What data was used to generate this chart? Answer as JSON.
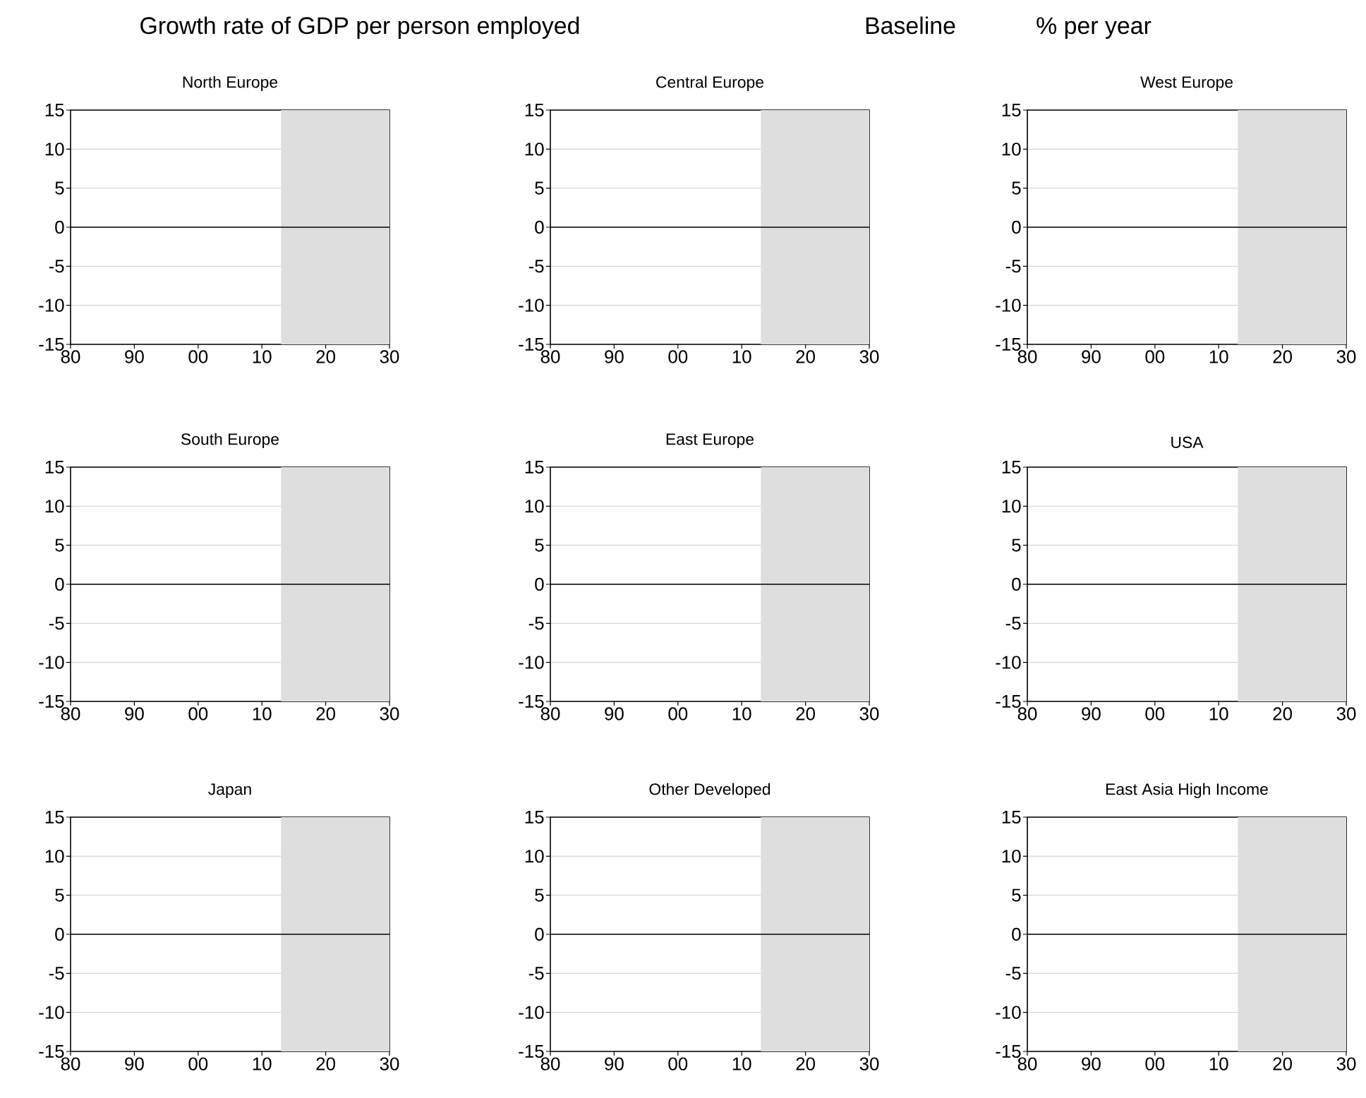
{
  "chart_data": [
    {
      "type": "line",
      "title": "North Europe",
      "annotations": [
        "Growth rate of GDP per person employed",
        "Baseline",
        "% per year"
      ],
      "xlim": [
        1980,
        2030
      ],
      "ylim": [
        -15,
        15
      ],
      "xticks": [
        {
          "value": 1980,
          "label": "80"
        },
        {
          "value": 1990,
          "label": "90"
        },
        {
          "value": 2000,
          "label": "00"
        },
        {
          "value": 2010,
          "label": "10"
        },
        {
          "value": 2020,
          "label": "20"
        },
        {
          "value": 2030,
          "label": "30"
        }
      ],
      "yticks": [
        -15,
        -10,
        -5,
        0,
        5,
        10,
        15
      ],
      "grid": "y",
      "ref_lines": [
        {
          "axis": "y",
          "value": 0,
          "color": "#000000"
        }
      ],
      "bands": [
        {
          "axis": "x",
          "from": 2013,
          "to": 2030,
          "color": "#dedede"
        }
      ]
    },
    {
      "type": "line",
      "title": "Central Europe",
      "xlim": [
        1980,
        2030
      ],
      "ylim": [
        -15,
        15
      ],
      "xticks": [
        {
          "value": 1980,
          "label": "80"
        },
        {
          "value": 1990,
          "label": "90"
        },
        {
          "value": 2000,
          "label": "00"
        },
        {
          "value": 2010,
          "label": "10"
        },
        {
          "value": 2020,
          "label": "20"
        },
        {
          "value": 2030,
          "label": "30"
        }
      ],
      "yticks": [
        -15,
        -10,
        -5,
        0,
        5,
        10,
        15
      ],
      "grid": "y",
      "ref_lines": [
        {
          "axis": "y",
          "value": 0,
          "color": "#000000"
        }
      ],
      "bands": [
        {
          "axis": "x",
          "from": 2013,
          "to": 2030,
          "color": "#dedede"
        }
      ]
    },
    {
      "type": "line",
      "title": "West Europe",
      "xlim": [
        1980,
        2030
      ],
      "ylim": [
        -15,
        15
      ],
      "xticks": [
        {
          "value": 1980,
          "label": "80"
        },
        {
          "value": 1990,
          "label": "90"
        },
        {
          "value": 2000,
          "label": "00"
        },
        {
          "value": 2010,
          "label": "10"
        },
        {
          "value": 2020,
          "label": "20"
        },
        {
          "value": 2030,
          "label": "30"
        }
      ],
      "yticks": [
        -15,
        -10,
        -5,
        0,
        5,
        10,
        15
      ],
      "grid": "y",
      "ref_lines": [
        {
          "axis": "y",
          "value": 0,
          "color": "#000000"
        }
      ],
      "bands": [
        {
          "axis": "x",
          "from": 2013,
          "to": 2030,
          "color": "#dedede"
        }
      ]
    },
    {
      "type": "line",
      "title": "South Europe",
      "xlim": [
        1980,
        2030
      ],
      "ylim": [
        -15,
        15
      ],
      "xticks": [
        {
          "value": 1980,
          "label": "80"
        },
        {
          "value": 1990,
          "label": "90"
        },
        {
          "value": 2000,
          "label": "00"
        },
        {
          "value": 2010,
          "label": "10"
        },
        {
          "value": 2020,
          "label": "20"
        },
        {
          "value": 2030,
          "label": "30"
        }
      ],
      "yticks": [
        -15,
        -10,
        -5,
        0,
        5,
        10,
        15
      ],
      "grid": "y",
      "ref_lines": [
        {
          "axis": "y",
          "value": 0,
          "color": "#000000"
        }
      ],
      "bands": [
        {
          "axis": "x",
          "from": 2013,
          "to": 2030,
          "color": "#dedede"
        }
      ]
    },
    {
      "type": "line",
      "title": "East Europe",
      "xlim": [
        1980,
        2030
      ],
      "ylim": [
        -15,
        15
      ],
      "xticks": [
        {
          "value": 1980,
          "label": "80"
        },
        {
          "value": 1990,
          "label": "90"
        },
        {
          "value": 2000,
          "label": "00"
        },
        {
          "value": 2010,
          "label": "10"
        },
        {
          "value": 2020,
          "label": "20"
        },
        {
          "value": 2030,
          "label": "30"
        }
      ],
      "yticks": [
        -15,
        -10,
        -5,
        0,
        5,
        10,
        15
      ],
      "grid": "y",
      "ref_lines": [
        {
          "axis": "y",
          "value": 0,
          "color": "#000000"
        }
      ],
      "bands": [
        {
          "axis": "x",
          "from": 2013,
          "to": 2030,
          "color": "#dedede"
        }
      ]
    },
    {
      "type": "line",
      "title": "USA",
      "xlim": [
        1980,
        2030
      ],
      "ylim": [
        -15,
        15
      ],
      "xticks": [
        {
          "value": 1980,
          "label": "80"
        },
        {
          "value": 1990,
          "label": "90"
        },
        {
          "value": 2000,
          "label": "00"
        },
        {
          "value": 2010,
          "label": "10"
        },
        {
          "value": 2020,
          "label": "20"
        },
        {
          "value": 2030,
          "label": "30"
        }
      ],
      "yticks": [
        -15,
        -10,
        -5,
        0,
        5,
        10,
        15
      ],
      "grid": "y",
      "ref_lines": [
        {
          "axis": "y",
          "value": 0,
          "color": "#000000"
        }
      ],
      "bands": [
        {
          "axis": "x",
          "from": 2013,
          "to": 2030,
          "color": "#dedede"
        }
      ]
    },
    {
      "type": "line",
      "title": "Japan",
      "xlim": [
        1980,
        2030
      ],
      "ylim": [
        -15,
        15
      ],
      "xticks": [
        {
          "value": 1980,
          "label": "80"
        },
        {
          "value": 1990,
          "label": "90"
        },
        {
          "value": 2000,
          "label": "00"
        },
        {
          "value": 2010,
          "label": "10"
        },
        {
          "value": 2020,
          "label": "20"
        },
        {
          "value": 2030,
          "label": "30"
        }
      ],
      "yticks": [
        -15,
        -10,
        -5,
        0,
        5,
        10,
        15
      ],
      "grid": "y",
      "ref_lines": [
        {
          "axis": "y",
          "value": 0,
          "color": "#000000"
        }
      ],
      "bands": [
        {
          "axis": "x",
          "from": 2013,
          "to": 2030,
          "color": "#dedede"
        }
      ]
    },
    {
      "type": "line",
      "title": "Other Developed",
      "xlim": [
        1980,
        2030
      ],
      "ylim": [
        -15,
        15
      ],
      "xticks": [
        {
          "value": 1980,
          "label": "80"
        },
        {
          "value": 1990,
          "label": "90"
        },
        {
          "value": 2000,
          "label": "00"
        },
        {
          "value": 2010,
          "label": "10"
        },
        {
          "value": 2020,
          "label": "20"
        },
        {
          "value": 2030,
          "label": "30"
        }
      ],
      "yticks": [
        -15,
        -10,
        -5,
        0,
        5,
        10,
        15
      ],
      "grid": "y",
      "ref_lines": [
        {
          "axis": "y",
          "value": 0,
          "color": "#000000"
        }
      ],
      "bands": [
        {
          "axis": "x",
          "from": 2013,
          "to": 2030,
          "color": "#dedede"
        }
      ]
    },
    {
      "type": "line",
      "title": "East Asia High Income",
      "xlim": [
        1980,
        2030
      ],
      "ylim": [
        -15,
        15
      ],
      "xticks": [
        {
          "value": 1980,
          "label": "80"
        },
        {
          "value": 1990,
          "label": "90"
        },
        {
          "value": 2000,
          "label": "00"
        },
        {
          "value": 2010,
          "label": "10"
        },
        {
          "value": 2020,
          "label": "20"
        },
        {
          "value": 2030,
          "label": "30"
        }
      ],
      "yticks": [
        -15,
        -10,
        -5,
        0,
        5,
        10,
        15
      ],
      "grid": "y",
      "ref_lines": [
        {
          "axis": "y",
          "value": 0,
          "color": "#000000"
        }
      ],
      "bands": [
        {
          "axis": "x",
          "from": 2013,
          "to": 2030,
          "color": "#dedede"
        }
      ]
    }
  ]
}
